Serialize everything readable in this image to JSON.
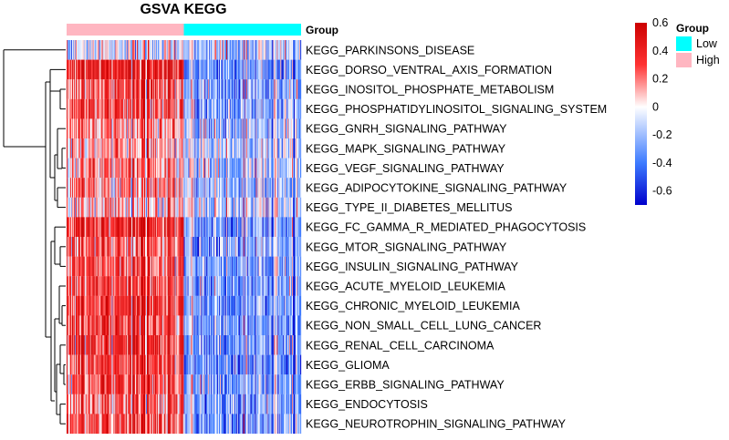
{
  "chart_data": {
    "type": "heatmap",
    "title": "GSVA KEGG",
    "rows": [
      "KEGG_PARKINSONS_DISEASE",
      "KEGG_DORSO_VENTRAL_AXIS_FORMATION",
      "KEGG_INOSITOL_PHOSPHATE_METABOLISM",
      "KEGG_PHOSPHATIDYLINOSITOL_SIGNALING_SYSTEM",
      "KEGG_GNRH_SIGNALING_PATHWAY",
      "KEGG_MAPK_SIGNALING_PATHWAY",
      "KEGG_VEGF_SIGNALING_PATHWAY",
      "KEGG_ADIPOCYTOKINE_SIGNALING_PATHWAY",
      "KEGG_TYPE_II_DIABETES_MELLITUS",
      "KEGG_FC_GAMMA_R_MEDIATED_PHAGOCYTOSIS",
      "KEGG_MTOR_SIGNALING_PATHWAY",
      "KEGG_INSULIN_SIGNALING_PATHWAY",
      "KEGG_ACUTE_MYELOID_LEUKEMIA",
      "KEGG_CHRONIC_MYELOID_LEUKEMIA",
      "KEGG_NON_SMALL_CELL_LUNG_CANCER",
      "KEGG_RENAL_CELL_CARCINOMA",
      "KEGG_GLIOMA",
      "KEGG_ERBB_SIGNALING_PATHWAY",
      "KEGG_ENDOCYTOSIS",
      "KEGG_NEUROTROPHIN_SIGNALING_PATHWAY"
    ],
    "row_mean_high": [
      -0.05,
      0.45,
      0.3,
      0.3,
      0.18,
      0.14,
      0.18,
      0.2,
      0.1,
      0.4,
      0.3,
      0.3,
      0.32,
      0.35,
      0.32,
      0.38,
      0.35,
      0.3,
      0.28,
      0.3
    ],
    "row_mean_low": [
      -0.15,
      -0.32,
      -0.25,
      -0.25,
      -0.18,
      -0.15,
      -0.18,
      -0.2,
      -0.12,
      -0.3,
      -0.28,
      -0.28,
      -0.3,
      -0.3,
      -0.3,
      -0.32,
      -0.32,
      -0.28,
      -0.26,
      -0.28
    ],
    "groups": [
      {
        "name": "High",
        "color": "#FFB6C1",
        "n_samples": 130
      },
      {
        "name": "Low",
        "color": "#00FFFF",
        "n_samples": 130
      }
    ],
    "annotation_label": "Group",
    "colorbar": {
      "min": -0.7,
      "max": 0.6,
      "ticks": [
        0.6,
        0.4,
        0.2,
        0,
        -0.2,
        -0.4,
        -0.6
      ],
      "tick_labels": [
        "0.6",
        "0.4",
        "0.2",
        "0",
        "-0.2",
        "-0.4",
        "-0.6"
      ],
      "colors": {
        "low": "#0000CC",
        "mid_low": "#3D7BFF",
        "mid": "#FFFFFF",
        "mid_high": "#FF3333",
        "high": "#CC0000"
      }
    },
    "legend": {
      "title": "Group",
      "items": [
        {
          "label": "Low",
          "color": "#00FFFF"
        },
        {
          "label": "High",
          "color": "#FFB6C1"
        }
      ]
    }
  }
}
